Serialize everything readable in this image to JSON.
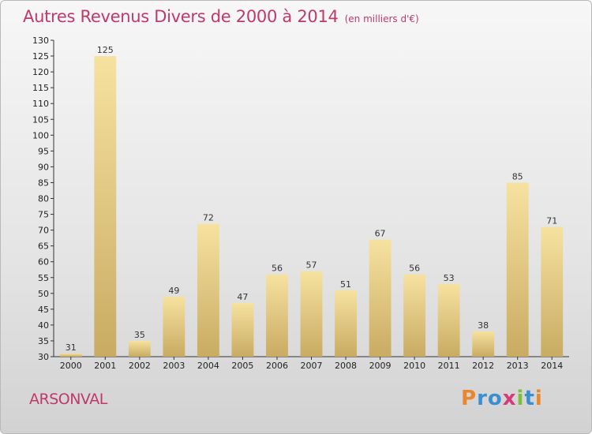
{
  "title": "Autres Revenus Divers de 2000 à 2014",
  "unit_note": "(en milliers d'€)",
  "commune": "ARSONVAL",
  "logo": {
    "text": "Proxiti",
    "letters": [
      "P",
      "r",
      "o",
      "x",
      "i",
      "t",
      "i"
    ],
    "colors": [
      "#e8872e",
      "#3a8fd1",
      "#3a8fd1",
      "#d63a7a",
      "#7cbf3a",
      "#3a8fd1",
      "#e8872e"
    ]
  },
  "colors": {
    "bar_light": "#f6e2a0",
    "bar_dark": "#c9ab62",
    "title": "#c0396b"
  },
  "chart_data": {
    "type": "bar",
    "title": "Autres Revenus Divers de 2000 à 2014",
    "subtitle": "(en milliers d'€)",
    "xlabel": "",
    "ylabel": "",
    "categories": [
      "2000",
      "2001",
      "2002",
      "2003",
      "2004",
      "2005",
      "2006",
      "2007",
      "2008",
      "2009",
      "2010",
      "2011",
      "2012",
      "2013",
      "2014"
    ],
    "values": [
      31,
      125,
      35,
      49,
      72,
      47,
      56,
      57,
      51,
      67,
      56,
      53,
      38,
      85,
      71
    ],
    "ylim": [
      30,
      130
    ],
    "yticks": [
      30,
      35,
      40,
      45,
      50,
      55,
      60,
      65,
      70,
      75,
      80,
      85,
      90,
      95,
      100,
      105,
      110,
      115,
      120,
      125,
      130
    ],
    "grid": false,
    "legend": "none"
  }
}
